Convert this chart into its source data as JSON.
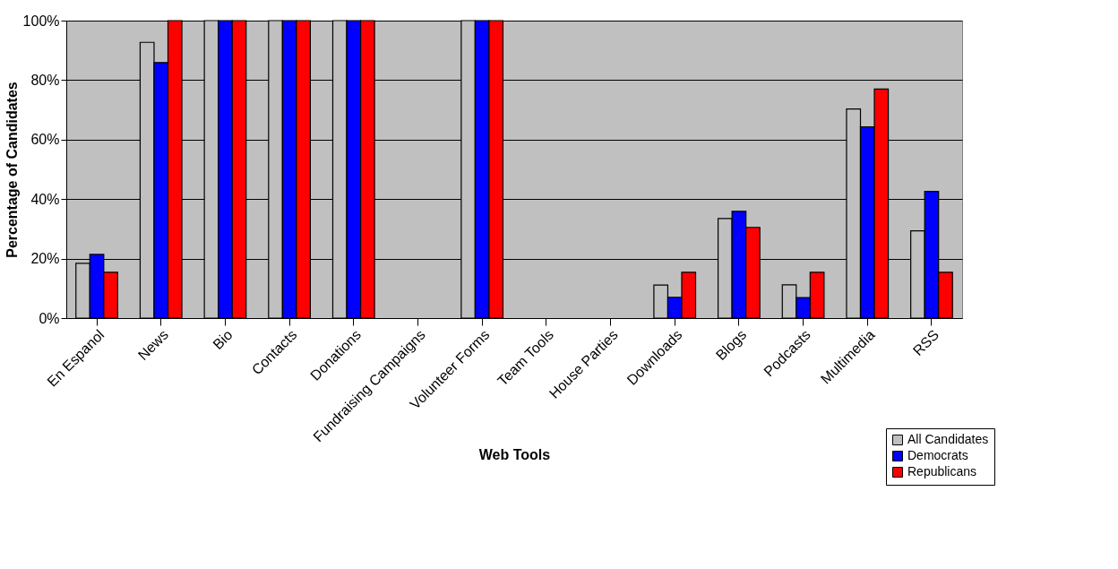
{
  "chart_data": {
    "type": "bar",
    "xlabel": "Web Tools",
    "ylabel": "Percentage of Candidates",
    "categories": [
      "En Espanol",
      "News",
      "Bio",
      "Contacts",
      "Donations",
      "Fundraising Campaigns",
      "Volunteer Forms",
      "Team Tools",
      "House Parties",
      "Downloads",
      "Blogs",
      "Podcasts",
      "Multimedia",
      "RSS"
    ],
    "series": [
      {
        "name": "All Candidates",
        "color": "#c0c0c0",
        "values": [
          18.4,
          92.7,
          100,
          100,
          100,
          0,
          100,
          0,
          0,
          11.1,
          33.5,
          11.2,
          70.3,
          29.3
        ]
      },
      {
        "name": "Democrats",
        "color": "#0000ff",
        "values": [
          21.4,
          85.9,
          100,
          100,
          100,
          0,
          100,
          0,
          0,
          7,
          35.9,
          6.9,
          64.3,
          42.6
        ]
      },
      {
        "name": "Republicans",
        "color": "#ff0000",
        "values": [
          15.4,
          100,
          100,
          100,
          100,
          0,
          100,
          0,
          0,
          15.4,
          30.5,
          15.4,
          77,
          15.4
        ]
      }
    ],
    "ylim": [
      0,
      100
    ],
    "yticks": [
      {
        "value": 0,
        "label": "0%"
      },
      {
        "value": 20,
        "label": "20%"
      },
      {
        "value": 40,
        "label": "40%"
      },
      {
        "value": 60,
        "label": "60%"
      },
      {
        "value": 80,
        "label": "80%"
      },
      {
        "value": 100,
        "label": "100%"
      }
    ],
    "grid": "y",
    "legend": "bottom right"
  }
}
